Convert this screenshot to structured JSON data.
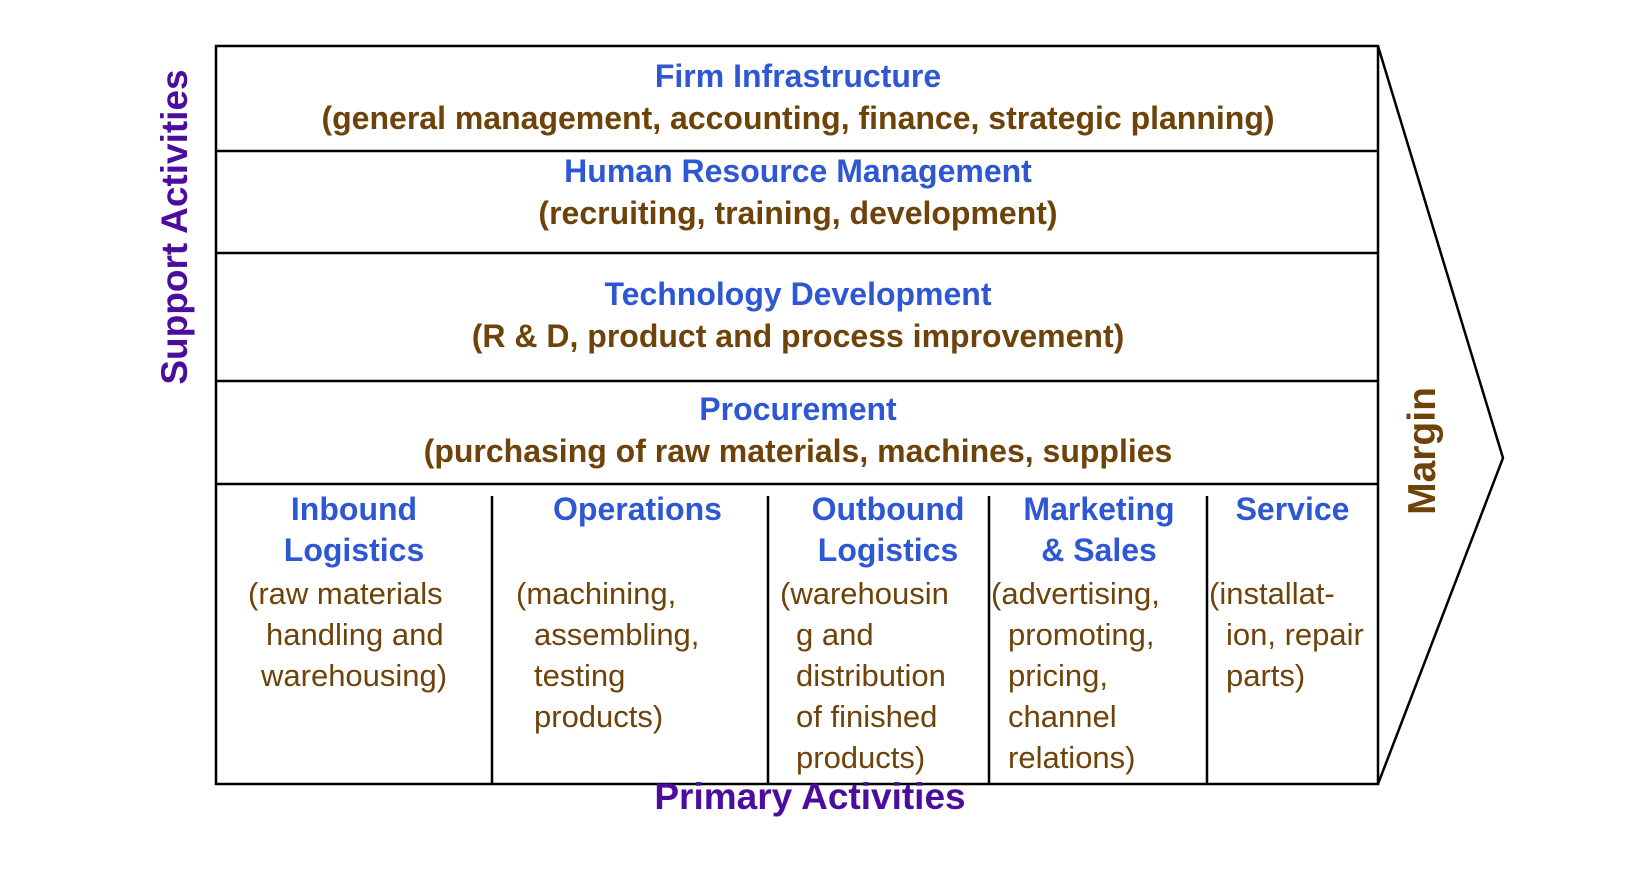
{
  "labels": {
    "support_activities": "Support Activities",
    "primary_activities": "Primary Activities",
    "margin": "Margin"
  },
  "support": [
    {
      "title": "Firm Infrastructure",
      "detail": "(general management, accounting, finance, strategic planning)"
    },
    {
      "title": "Human Resource Management",
      "detail": "(recruiting, training, development)"
    },
    {
      "title": "Technology Development",
      "detail": "(R & D, product and process improvement)"
    },
    {
      "title": "Procurement",
      "detail": "(purchasing of raw materials, machines, supplies"
    }
  ],
  "primary": [
    {
      "title_lines": [
        "Inbound",
        "Logistics"
      ],
      "detail_lines": [
        "(raw materials",
        "handling and",
        "warehousing)"
      ]
    },
    {
      "title_lines": [
        "Operations"
      ],
      "detail_lines": [
        "(machining,",
        "assembling,",
        "testing",
        "products)"
      ]
    },
    {
      "title_lines": [
        "Outbound",
        "Logistics"
      ],
      "detail_lines": [
        "(warehousin",
        "g and",
        "distribution",
        "of finished",
        "products)"
      ]
    },
    {
      "title_lines": [
        "Marketing",
        "& Sales"
      ],
      "detail_lines": [
        "(advertising,",
        "promoting,",
        "pricing,",
        "channel",
        "relations)"
      ]
    },
    {
      "title_lines": [
        "Service"
      ],
      "detail_lines": [
        "(installat-",
        "ion, repair",
        "parts)"
      ]
    }
  ],
  "colors": {
    "heading_blue": "#2e57d4",
    "detail_brown": "#6e430a",
    "axis_purple": "#4b0d9e",
    "line": "#000000"
  }
}
